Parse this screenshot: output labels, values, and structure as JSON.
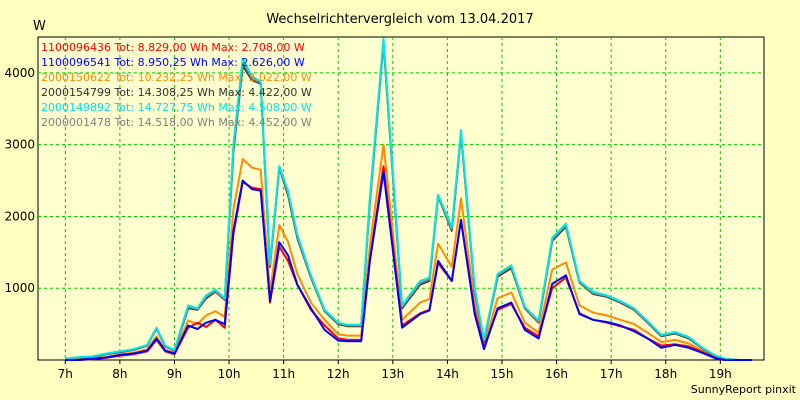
{
  "chart_data": {
    "type": "line",
    "title": "Wechselrichtervergleich vom 13.04.2017",
    "ylabel": "W",
    "footer": "SunnyReport pinxit",
    "xlim": [
      6.5,
      19.8
    ],
    "ylim": [
      0,
      4500
    ],
    "y_ticks": [
      1000,
      2000,
      3000,
      4000
    ],
    "x_ticks": [
      {
        "v": 7,
        "label": "7h"
      },
      {
        "v": 8,
        "label": "8h"
      },
      {
        "v": 9,
        "label": "9h"
      },
      {
        "v": 10,
        "label": "10h"
      },
      {
        "v": 11,
        "label": "11h"
      },
      {
        "v": 12,
        "label": "12h"
      },
      {
        "v": 13,
        "label": "13h"
      },
      {
        "v": 14,
        "label": "14h"
      },
      {
        "v": 15,
        "label": "15h"
      },
      {
        "v": 16,
        "label": "16h"
      },
      {
        "v": 17,
        "label": "17h"
      },
      {
        "v": 18,
        "label": "18h"
      },
      {
        "v": 19,
        "label": "19h"
      }
    ],
    "x": [
      7.0,
      7.25,
      7.5,
      7.75,
      8.0,
      8.25,
      8.5,
      8.67,
      8.83,
      9.0,
      9.25,
      9.42,
      9.58,
      9.75,
      9.92,
      10.08,
      10.25,
      10.42,
      10.58,
      10.75,
      10.92,
      11.08,
      11.25,
      11.5,
      11.75,
      12.0,
      12.17,
      12.42,
      12.58,
      12.83,
      13.17,
      13.5,
      13.67,
      13.83,
      14.08,
      14.25,
      14.5,
      14.67,
      14.92,
      15.17,
      15.42,
      15.67,
      15.92,
      16.17,
      16.42,
      16.67,
      16.92,
      17.17,
      17.42,
      17.67,
      17.92,
      18.17,
      18.42,
      18.67,
      18.92,
      19.08,
      19.33,
      19.58
    ],
    "series": [
      {
        "name": "1100096436",
        "legend": "1100096436 Tot: 8.829,00 Wh Max: 2.708,00 W",
        "color": "#ff0000",
        "values": [
          0,
          0,
          10,
          30,
          60,
          80,
          120,
          280,
          120,
          80,
          450,
          520,
          460,
          560,
          450,
          1750,
          2480,
          2400,
          2380,
          800,
          1580,
          1380,
          1050,
          700,
          480,
          300,
          280,
          280,
          1400,
          2700,
          480,
          650,
          700,
          1350,
          1100,
          1950,
          680,
          180,
          700,
          780,
          450,
          330,
          1000,
          1150,
          650,
          560,
          520,
          470,
          420,
          300,
          200,
          220,
          190,
          110,
          30,
          0,
          0,
          0
        ]
      },
      {
        "name": "1100096541",
        "legend": "1100096541 Tot: 8.950,25 Wh Max: 2.626,00 W",
        "color": "#0000ff",
        "values": [
          0,
          0,
          15,
          35,
          70,
          90,
          130,
          300,
          130,
          90,
          480,
          430,
          520,
          560,
          500,
          1800,
          2500,
          2380,
          2360,
          820,
          1640,
          1460,
          1050,
          720,
          420,
          270,
          260,
          260,
          1380,
          2620,
          450,
          640,
          690,
          1380,
          1100,
          1950,
          640,
          150,
          720,
          800,
          420,
          300,
          1060,
          1180,
          640,
          560,
          530,
          480,
          400,
          300,
          170,
          210,
          170,
          100,
          20,
          0,
          0,
          0
        ]
      },
      {
        "name": "2000150622",
        "legend": "2000150622 Tot: 10.232,25 Wh Max: 3.022,00 W",
        "color": "#ff8c00",
        "values": [
          0,
          10,
          20,
          40,
          80,
          100,
          150,
          330,
          140,
          100,
          550,
          500,
          620,
          680,
          600,
          2100,
          2800,
          2680,
          2650,
          950,
          1880,
          1650,
          1200,
          800,
          560,
          360,
          340,
          340,
          1600,
          3000,
          560,
          800,
          850,
          1620,
          1300,
          2250,
          780,
          200,
          860,
          940,
          520,
          380,
          1260,
          1360,
          760,
          660,
          620,
          560,
          500,
          380,
          250,
          280,
          230,
          130,
          40,
          10,
          0,
          0
        ]
      },
      {
        "name": "2000154799",
        "legend": "2000154799 Tot: 14.308,25 Wh Max: 4.422,00 W",
        "color": "#303030",
        "values": [
          0,
          20,
          40,
          80,
          110,
          140,
          200,
          440,
          190,
          130,
          720,
          700,
          860,
          950,
          840,
          2900,
          4100,
          3900,
          3850,
          1300,
          2680,
          2300,
          1700,
          1150,
          680,
          500,
          470,
          470,
          2200,
          4420,
          720,
          1050,
          1100,
          2280,
          1800,
          3150,
          960,
          260,
          1160,
          1280,
          720,
          520,
          1660,
          1860,
          1080,
          920,
          880,
          800,
          700,
          520,
          330,
          370,
          300,
          160,
          50,
          10,
          0,
          0
        ]
      },
      {
        "name": "2000149892",
        "legend": "2000149892 Tot: 14.727,75 Wh Max: 4.508,00 W",
        "color": "#00e5e5",
        "values": [
          20,
          40,
          50,
          90,
          120,
          150,
          210,
          450,
          200,
          140,
          760,
          720,
          900,
          980,
          860,
          3000,
          4200,
          3950,
          3880,
          1340,
          2700,
          2360,
          1750,
          1180,
          700,
          520,
          490,
          490,
          2260,
          4480,
          760,
          1100,
          1150,
          2300,
          1850,
          3200,
          1000,
          280,
          1200,
          1320,
          740,
          550,
          1700,
          1900,
          1100,
          950,
          900,
          820,
          720,
          540,
          350,
          390,
          320,
          170,
          60,
          20,
          0,
          0
        ]
      },
      {
        "name": "2000001478",
        "legend": "2000001478 Tot: 14.518,00 Wh Max: 4.452,00 W",
        "color": "#808080",
        "values": [
          10,
          30,
          45,
          85,
          115,
          145,
          205,
          445,
          195,
          135,
          740,
          710,
          880,
          960,
          850,
          2950,
          4150,
          3920,
          3860,
          1320,
          2690,
          2330,
          1720,
          1160,
          690,
          510,
          480,
          480,
          2230,
          4450,
          740,
          1070,
          1120,
          2290,
          1820,
          3170,
          980,
          270,
          1180,
          1300,
          730,
          530,
          1680,
          1880,
          1090,
          930,
          890,
          810,
          710,
          530,
          340,
          380,
          310,
          165,
          55,
          15,
          0,
          0
        ]
      }
    ]
  }
}
